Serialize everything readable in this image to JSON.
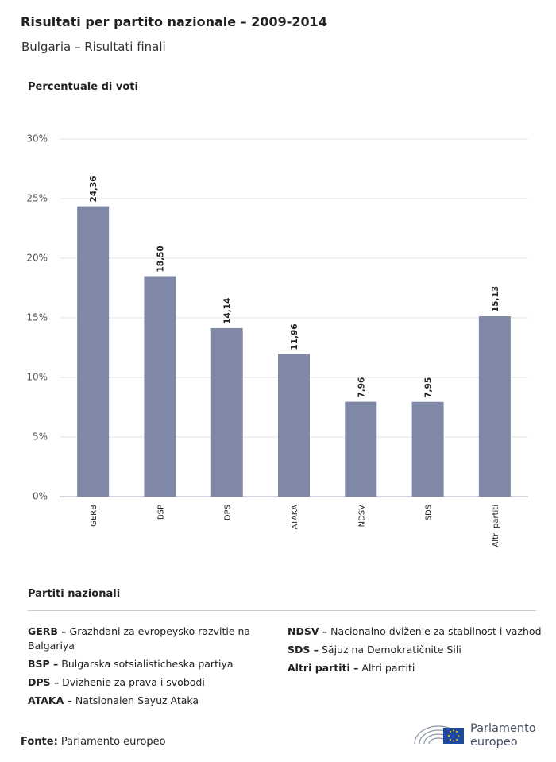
{
  "chart_data": {
    "type": "bar",
    "title": "Risultati per partito nazionale – 2009-2014",
    "subtitle": "Bulgaria – Risultati finali",
    "y_label": "Percentuale di voti",
    "categories": [
      "GERB",
      "BSP",
      "DPS",
      "ATAKA",
      "NDSV",
      "SDS",
      "Altri partiti"
    ],
    "values": [
      24.36,
      18.5,
      14.14,
      11.96,
      7.96,
      7.95,
      15.13
    ],
    "value_labels": [
      "24,36",
      "18,50",
      "14,14",
      "11,96",
      "7,96",
      "7,95",
      "15,13"
    ],
    "color": "#7f88a6",
    "ylim": [
      0,
      30
    ],
    "yticks": [
      {
        "value": 0,
        "label": "0%"
      },
      {
        "value": 5,
        "label": "5%"
      },
      {
        "value": 10,
        "label": "10%"
      },
      {
        "value": 15,
        "label": "15%"
      },
      {
        "value": 20,
        "label": "20%"
      },
      {
        "value": 25,
        "label": "25%"
      },
      {
        "value": 30,
        "label": "30%"
      }
    ],
    "grid": true,
    "legend_title": "Partiti nazionali",
    "legend_columns": [
      [
        {
          "label": "GERB –",
          "text": "Grazhdani za evropeysko razvitie na Balgariya"
        },
        {
          "label": "BSP –",
          "text": "Bulgarska sotsialisticheska partiya"
        },
        {
          "label": "DPS –",
          "text": "Dvizhenie za prava i svobodi"
        },
        {
          "label": "ATAKA –",
          "text": "Natsionalen Sayuz Ataka"
        }
      ],
      [
        {
          "label": "NDSV –",
          "text": "Nacionalno dviženie za stabilnost i vazhod"
        },
        {
          "label": "SDS –",
          "text": "Săjuz na Demokratičnite Sili"
        },
        {
          "label": "Altri partiti –",
          "text": "Altri partiti"
        }
      ]
    ],
    "source_label": "Fonte:",
    "source": "Parlamento europeo",
    "logo_text": [
      "Parlamento",
      "europeo"
    ]
  }
}
